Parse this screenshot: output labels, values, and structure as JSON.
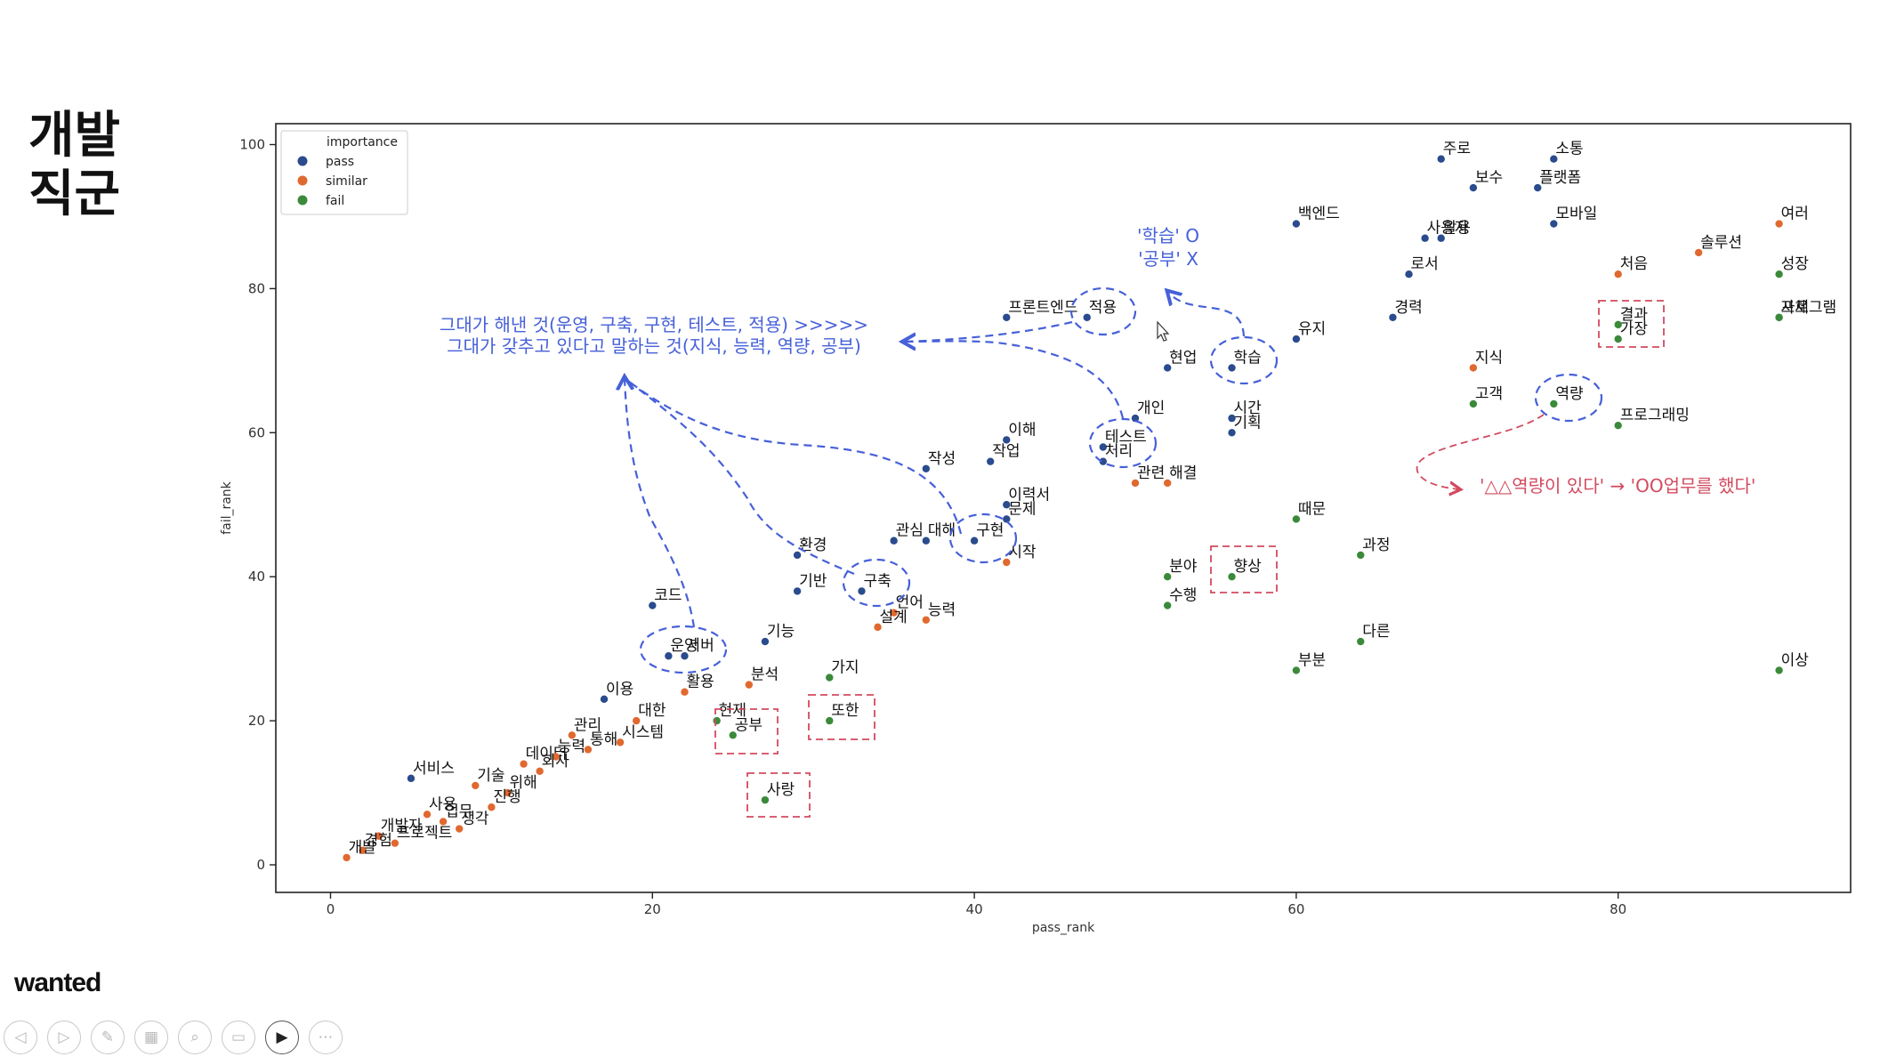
{
  "slide": {
    "title_line1": "개발",
    "title_line2": "직군",
    "brand": "wanted"
  },
  "toolbar": {
    "buttons": [
      {
        "name": "prev-slide-icon",
        "glyph": "◁"
      },
      {
        "name": "next-slide-icon",
        "glyph": "▷"
      },
      {
        "name": "pen-icon",
        "glyph": "✎"
      },
      {
        "name": "slides-grid-icon",
        "glyph": "▦"
      },
      {
        "name": "zoom-icon",
        "glyph": "⌕"
      },
      {
        "name": "subtitles-icon",
        "glyph": "▭"
      },
      {
        "name": "camera-icon",
        "glyph": "▶"
      },
      {
        "name": "more-icon",
        "glyph": "⋯"
      }
    ]
  },
  "chart_data": {
    "type": "scatter",
    "xlabel": "pass_rank",
    "ylabel": "fail_rank",
    "xlim": [
      -3,
      95
    ],
    "ylim": [
      -4,
      103
    ],
    "xticks": [
      0,
      20,
      40,
      60,
      80
    ],
    "yticks": [
      0,
      20,
      40,
      60,
      80,
      100
    ],
    "legend": {
      "title": "importance",
      "placement": "top-left",
      "entries": [
        {
          "label": "pass",
          "color": "#2a4b8d"
        },
        {
          "label": "similar",
          "color": "#e0692f"
        },
        {
          "label": "fail",
          "color": "#3a8a3a"
        }
      ]
    },
    "colors": {
      "pass": "#2a4b8d",
      "similar": "#e0692f",
      "fail": "#3a8a3a",
      "annot_blue": "#4660d8",
      "annot_red": "#d24a5f"
    },
    "points": [
      {
        "label": "주로",
        "x": 69,
        "y": 98,
        "imp": "pass"
      },
      {
        "label": "소통",
        "x": 76,
        "y": 98,
        "imp": "pass"
      },
      {
        "label": "보수",
        "x": 71,
        "y": 94,
        "imp": "pass"
      },
      {
        "label": "플랫폼",
        "x": 75,
        "y": 94,
        "imp": "pass"
      },
      {
        "label": "백엔드",
        "x": 60,
        "y": 89,
        "imp": "pass"
      },
      {
        "label": "모바일",
        "x": 76,
        "y": 89,
        "imp": "pass"
      },
      {
        "label": "사용자",
        "x": 68,
        "y": 87,
        "imp": "pass"
      },
      {
        "label": "활용",
        "x": 69,
        "y": 87,
        "imp": "pass"
      },
      {
        "label": "여러",
        "x": 90,
        "y": 89,
        "imp": "similar"
      },
      {
        "label": "솔루션",
        "x": 85,
        "y": 85,
        "imp": "similar"
      },
      {
        "label": "처음",
        "x": 80,
        "y": 82,
        "imp": "similar"
      },
      {
        "label": "성장",
        "x": 90,
        "y": 82,
        "imp": "fail"
      },
      {
        "label": "로서",
        "x": 67,
        "y": 82,
        "imp": "pass"
      },
      {
        "label": "경력",
        "x": 66,
        "y": 76,
        "imp": "pass"
      },
      {
        "label": "프로그램",
        "x": 90,
        "y": 76,
        "imp": "fail"
      },
      {
        "label": "자체",
        "x": 90,
        "y": 76,
        "imp": "fail"
      },
      {
        "label": "결과",
        "x": 80,
        "y": 75,
        "imp": "fail"
      },
      {
        "label": "가장",
        "x": 80,
        "y": 73,
        "imp": "fail"
      },
      {
        "label": "유지",
        "x": 60,
        "y": 73,
        "imp": "pass"
      },
      {
        "label": "프론트엔드",
        "x": 42,
        "y": 76,
        "imp": "pass"
      },
      {
        "label": "적용",
        "x": 47,
        "y": 76,
        "imp": "pass"
      },
      {
        "label": "현업",
        "x": 52,
        "y": 69,
        "imp": "pass"
      },
      {
        "label": "학습",
        "x": 56,
        "y": 69,
        "imp": "pass"
      },
      {
        "label": "지식",
        "x": 71,
        "y": 69,
        "imp": "similar"
      },
      {
        "label": "고객",
        "x": 71,
        "y": 64,
        "imp": "fail"
      },
      {
        "label": "역량",
        "x": 76,
        "y": 64,
        "imp": "fail"
      },
      {
        "label": "프로그래밍",
        "x": 80,
        "y": 61,
        "imp": "fail"
      },
      {
        "label": "개인",
        "x": 50,
        "y": 62,
        "imp": "pass"
      },
      {
        "label": "시간",
        "x": 56,
        "y": 62,
        "imp": "pass"
      },
      {
        "label": "기획",
        "x": 56,
        "y": 60,
        "imp": "pass"
      },
      {
        "label": "이해",
        "x": 42,
        "y": 59,
        "imp": "pass"
      },
      {
        "label": "테스트",
        "x": 48,
        "y": 58,
        "imp": "pass"
      },
      {
        "label": "처리",
        "x": 48,
        "y": 56,
        "imp": "pass"
      },
      {
        "label": "작업",
        "x": 41,
        "y": 56,
        "imp": "pass"
      },
      {
        "label": "작성",
        "x": 37,
        "y": 55,
        "imp": "pass"
      },
      {
        "label": "관련",
        "x": 50,
        "y": 53,
        "imp": "similar"
      },
      {
        "label": "해결",
        "x": 52,
        "y": 53,
        "imp": "similar"
      },
      {
        "label": "이력서",
        "x": 42,
        "y": 50,
        "imp": "pass"
      },
      {
        "label": "문제",
        "x": 42,
        "y": 48,
        "imp": "pass"
      },
      {
        "label": "때문",
        "x": 60,
        "y": 48,
        "imp": "fail"
      },
      {
        "label": "관심",
        "x": 35,
        "y": 45,
        "imp": "pass"
      },
      {
        "label": "대해",
        "x": 37,
        "y": 45,
        "imp": "pass"
      },
      {
        "label": "구현",
        "x": 40,
        "y": 45,
        "imp": "pass"
      },
      {
        "label": "환경",
        "x": 29,
        "y": 43,
        "imp": "pass"
      },
      {
        "label": "시작",
        "x": 42,
        "y": 42,
        "imp": "similar"
      },
      {
        "label": "과정",
        "x": 64,
        "y": 43,
        "imp": "fail"
      },
      {
        "label": "분야",
        "x": 52,
        "y": 40,
        "imp": "fail"
      },
      {
        "label": "향상",
        "x": 56,
        "y": 40,
        "imp": "fail"
      },
      {
        "label": "기반",
        "x": 29,
        "y": 38,
        "imp": "pass"
      },
      {
        "label": "구축",
        "x": 33,
        "y": 38,
        "imp": "pass"
      },
      {
        "label": "코드",
        "x": 20,
        "y": 36,
        "imp": "pass"
      },
      {
        "label": "수행",
        "x": 52,
        "y": 36,
        "imp": "fail"
      },
      {
        "label": "언어",
        "x": 35,
        "y": 35,
        "imp": "similar"
      },
      {
        "label": "설계",
        "x": 34,
        "y": 33,
        "imp": "similar"
      },
      {
        "label": "능력",
        "x": 37,
        "y": 34,
        "imp": "similar"
      },
      {
        "label": "기능",
        "x": 27,
        "y": 31,
        "imp": "pass"
      },
      {
        "label": "다른",
        "x": 64,
        "y": 31,
        "imp": "fail"
      },
      {
        "label": "운영",
        "x": 21,
        "y": 29,
        "imp": "pass"
      },
      {
        "label": "서버",
        "x": 22,
        "y": 29,
        "imp": "pass"
      },
      {
        "label": "부분",
        "x": 60,
        "y": 27,
        "imp": "fail"
      },
      {
        "label": "이상",
        "x": 90,
        "y": 27,
        "imp": "fail"
      },
      {
        "label": "가지",
        "x": 31,
        "y": 26,
        "imp": "fail"
      },
      {
        "label": "분석",
        "x": 26,
        "y": 25,
        "imp": "similar"
      },
      {
        "label": "활용",
        "x": 22,
        "y": 24,
        "imp": "similar"
      },
      {
        "label": "이용",
        "x": 17,
        "y": 23,
        "imp": "pass"
      },
      {
        "label": "대한",
        "x": 19,
        "y": 20,
        "imp": "similar"
      },
      {
        "label": "현재",
        "x": 24,
        "y": 20,
        "imp": "fail"
      },
      {
        "label": "또한",
        "x": 31,
        "y": 20,
        "imp": "fail"
      },
      {
        "label": "관리",
        "x": 15,
        "y": 18,
        "imp": "similar"
      },
      {
        "label": "공부",
        "x": 25,
        "y": 18,
        "imp": "fail"
      },
      {
        "label": "시스템",
        "x": 18,
        "y": 17,
        "imp": "similar"
      },
      {
        "label": "통해",
        "x": 16,
        "y": 16,
        "imp": "similar"
      },
      {
        "label": "데이터",
        "x": 12,
        "y": 14,
        "imp": "similar"
      },
      {
        "label": "능력",
        "x": 14,
        "y": 15,
        "imp": "similar"
      },
      {
        "label": "회사",
        "x": 13,
        "y": 13,
        "imp": "similar"
      },
      {
        "label": "서비스",
        "x": 5,
        "y": 12,
        "imp": "pass"
      },
      {
        "label": "기술",
        "x": 9,
        "y": 11,
        "imp": "similar"
      },
      {
        "label": "위해",
        "x": 11,
        "y": 10,
        "imp": "similar"
      },
      {
        "label": "사랑",
        "x": 27,
        "y": 9,
        "imp": "fail"
      },
      {
        "label": "진행",
        "x": 10,
        "y": 8,
        "imp": "similar"
      },
      {
        "label": "사용",
        "x": 6,
        "y": 7,
        "imp": "similar"
      },
      {
        "label": "업무",
        "x": 7,
        "y": 6,
        "imp": "similar"
      },
      {
        "label": "생각",
        "x": 8,
        "y": 5,
        "imp": "similar"
      },
      {
        "label": "개발자",
        "x": 3,
        "y": 4,
        "imp": "similar"
      },
      {
        "label": "프로젝트",
        "x": 4,
        "y": 3,
        "imp": "similar"
      },
      {
        "label": "경험",
        "x": 2,
        "y": 2,
        "imp": "similar"
      },
      {
        "label": "개발",
        "x": 1,
        "y": 1,
        "imp": "similar"
      }
    ],
    "annotations": {
      "main_line1": "그대가 해낸 것(운영, 구축, 구현, 테스트, 적용) >>>>>",
      "main_line2": "그대가 갖추고 있다고 말하는 것(지식, 능력, 역량, 공부)",
      "learn_line1": "'학습' O",
      "learn_line2": "'공부' X",
      "red_note": "'△△역량이 있다' → 'OO업무를 했다'"
    }
  }
}
